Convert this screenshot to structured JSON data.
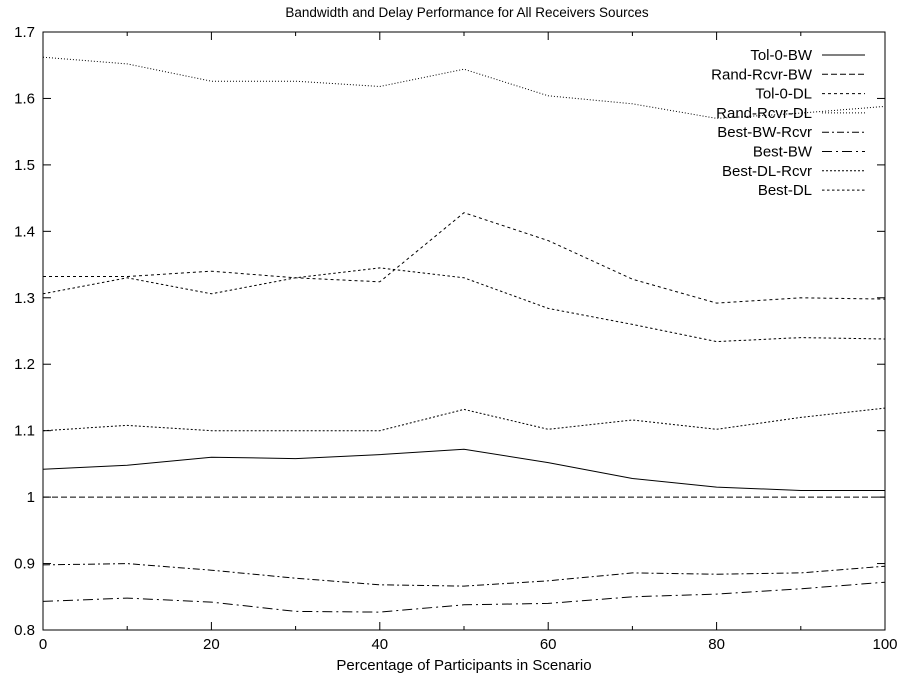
{
  "chart_data": {
    "type": "line",
    "title": "Bandwidth and Delay Performance for All Receivers Sources",
    "xlabel": "Percentage of Participants in Scenario",
    "ylabel": "",
    "xlim": [
      0,
      100
    ],
    "ylim": [
      0.8,
      1.7
    ],
    "xticks": [
      "0",
      "20",
      "40",
      "60",
      "80",
      "100"
    ],
    "yticks": [
      "0.8",
      "0.9",
      "1",
      "1.1",
      "1.2",
      "1.3",
      "1.4",
      "1.5",
      "1.6",
      "1.7"
    ],
    "grid": false,
    "legend_position": "top-right",
    "x": [
      0,
      10,
      20,
      30,
      40,
      50,
      60,
      70,
      80,
      90,
      100
    ],
    "series": [
      {
        "name": "Tol-0-BW",
        "dash": "solid",
        "values": [
          1.042,
          1.048,
          1.06,
          1.058,
          1.064,
          1.072,
          1.052,
          1.028,
          1.015,
          1.01,
          1.01
        ]
      },
      {
        "name": "Rand-Rcvr-BW",
        "dash": "dashed",
        "values": [
          1.0,
          1.0,
          1.0,
          1.0,
          1.0,
          1.0,
          1.0,
          1.0,
          1.0,
          1.0,
          1.0
        ]
      },
      {
        "name": "Tol-0-DL",
        "dash": "short-dash",
        "values": [
          1.332,
          1.332,
          1.34,
          1.33,
          1.324,
          1.428,
          1.386,
          1.328,
          1.292,
          1.3,
          1.298
        ]
      },
      {
        "name": "Rand-Rcvr-DL",
        "dash": "dotted",
        "values": [
          1.662,
          1.652,
          1.626,
          1.626,
          1.618,
          1.644,
          1.604,
          1.592,
          1.57,
          1.578,
          1.588
        ]
      },
      {
        "name": "Best-BW-Rcvr",
        "dash": "dash-dot",
        "values": [
          0.898,
          0.9,
          0.89,
          0.878,
          0.868,
          0.866,
          0.874,
          0.886,
          0.884,
          0.886,
          0.896
        ]
      },
      {
        "name": "Best-BW",
        "dash": "long-dash-dot",
        "values": [
          0.843,
          0.848,
          0.842,
          0.828,
          0.827,
          0.838,
          0.84,
          0.85,
          0.854,
          0.862,
          0.872
        ]
      },
      {
        "name": "Best-DL-Rcvr",
        "dash": "fine-dash",
        "values": [
          1.1,
          1.108,
          1.1,
          1.1,
          1.1,
          1.132,
          1.102,
          1.116,
          1.102,
          1.12,
          1.134
        ]
      },
      {
        "name": "Best-DL",
        "dash": "fine-dash-2",
        "values": [
          1.306,
          1.33,
          1.306,
          1.33,
          1.345,
          1.33,
          1.284,
          1.26,
          1.234,
          1.24,
          1.238
        ]
      }
    ]
  }
}
